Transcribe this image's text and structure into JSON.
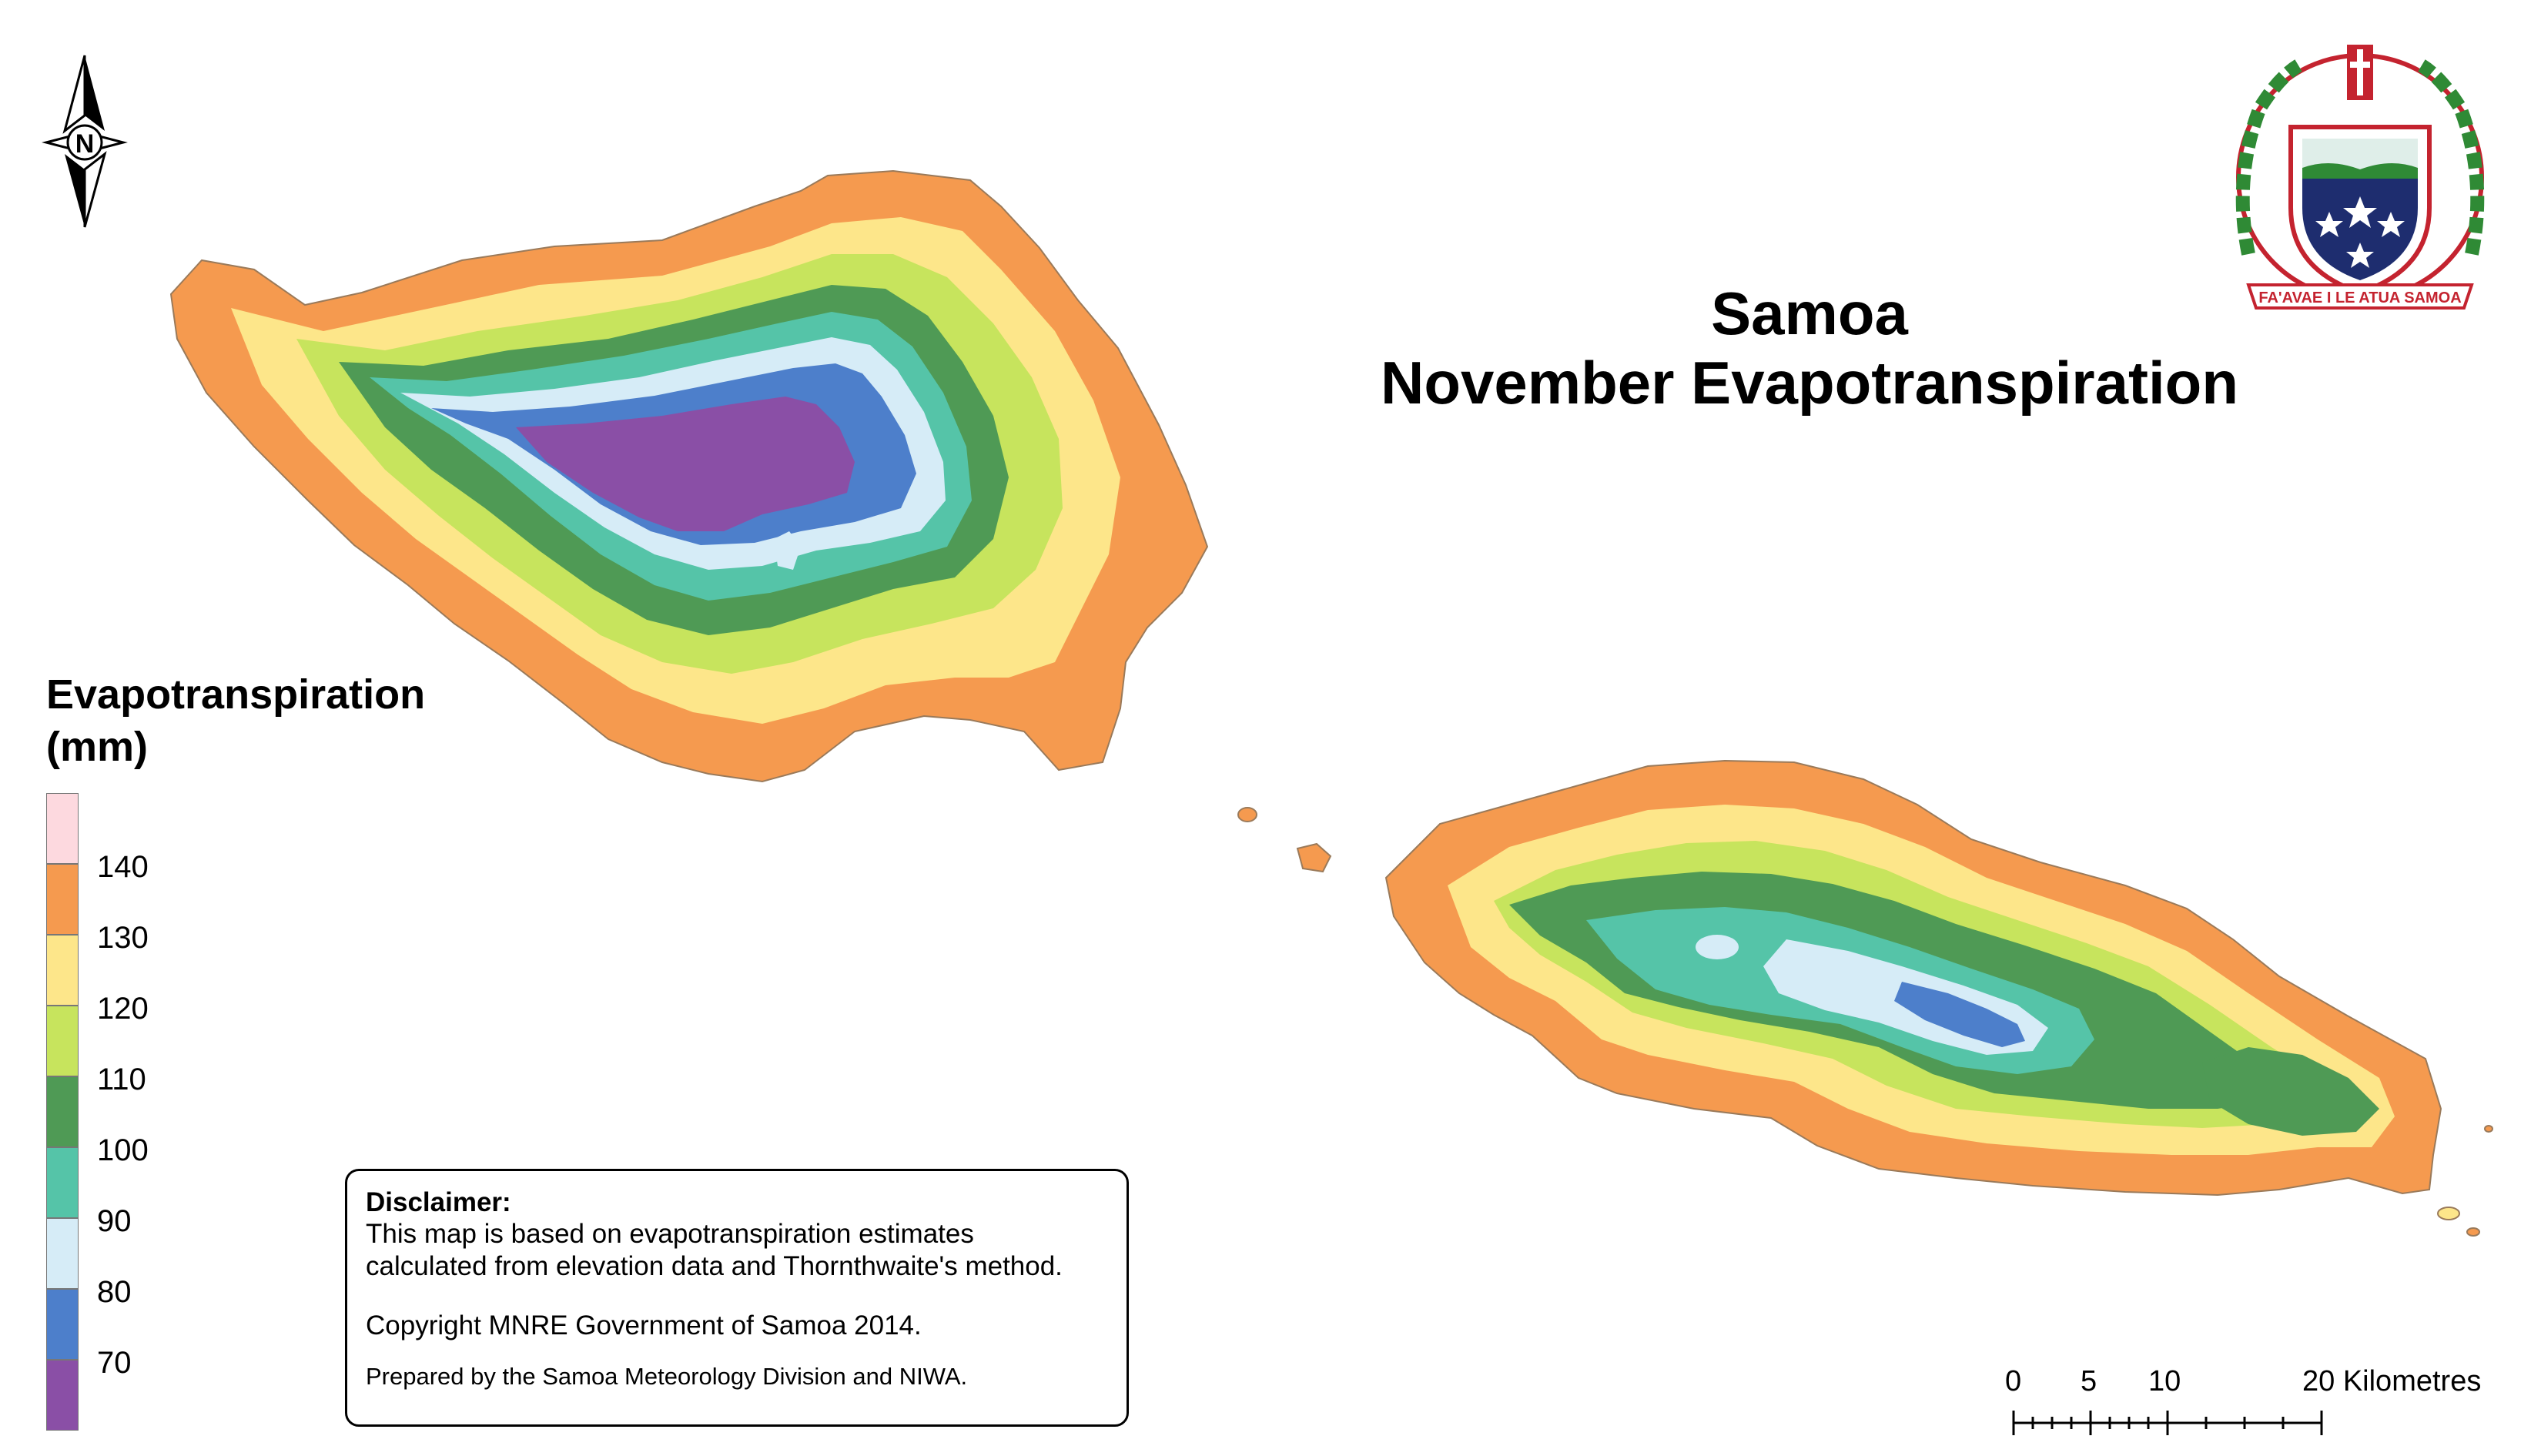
{
  "title": {
    "line1": "Samoa",
    "line2": "November Evapotranspiration"
  },
  "legend": {
    "title_line1": "Evapotranspiration",
    "title_line2": "(mm)",
    "classes": [
      {
        "label": "",
        "color": "#fdd9df"
      },
      {
        "label": "140",
        "color": "#f59a4f"
      },
      {
        "label": "130",
        "color": "#fde68a"
      },
      {
        "label": "120",
        "color": "#c7e45d"
      },
      {
        "label": "110",
        "color": "#4f9a55"
      },
      {
        "label": "100",
        "color": "#55c4a8"
      },
      {
        "label": "90",
        "color": "#d6ecf7"
      },
      {
        "label": "80",
        "color": "#4d7fcb"
      },
      {
        "label": "70",
        "color": "#8a4fa6"
      }
    ]
  },
  "disclaimer": {
    "heading": "Disclaimer:",
    "line1": "This map is based on evapotranspiration estimates",
    "line2": "calculated from elevation data and Thornthwaite's method.",
    "copyright": "Copyright MNRE Government of Samoa 2014.",
    "prepared": "Prepared by the Samoa Meteorology Division and NIWA."
  },
  "scale_bar": {
    "ticks": [
      "0",
      "5",
      "10",
      "20 Kilometres"
    ]
  },
  "north_arrow": {
    "letter": "N",
    "icon": "north-arrow-icon"
  },
  "emblem": {
    "motto": "FA'AVAE I LE ATUA SAMOA",
    "icon": "coat-of-arms-icon"
  },
  "colors": {
    "z70": "#8a4fa6",
    "z80": "#4d7fcb",
    "z90": "#d6ecf7",
    "z100": "#55c4a8",
    "z110": "#4f9a55",
    "z120": "#c7e45d",
    "z130": "#fde68a",
    "z140": "#f59a4f",
    "z150": "#fdd9df",
    "outline": "#9a7a5a"
  }
}
